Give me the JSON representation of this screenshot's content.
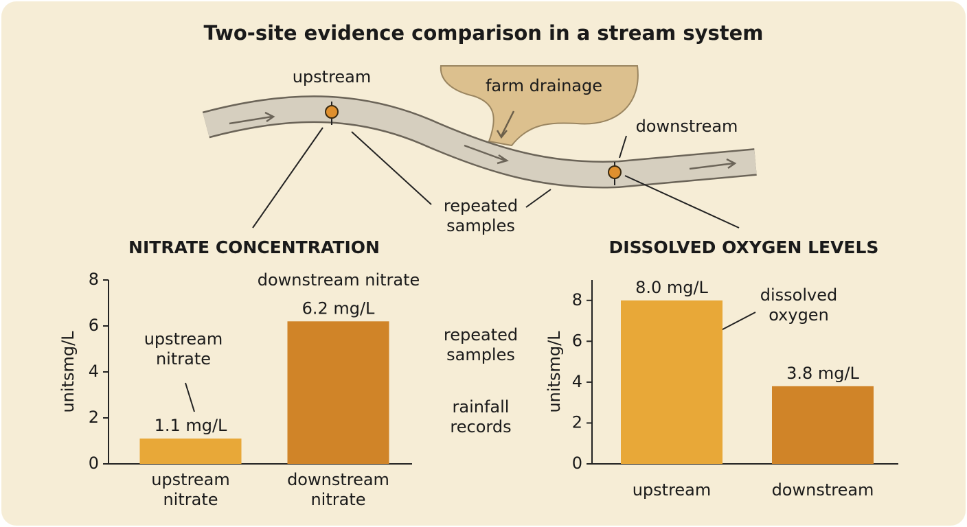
{
  "title": "Two-site evidence comparison in a stream system",
  "diagram": {
    "upstream_site": "upstream",
    "farm_drainage": "farm drainage",
    "downstream_site": "downstream",
    "repeated_samples": "repeated samples"
  },
  "middle_notes": [
    "repeated samples",
    "rainfall records"
  ],
  "chart_data": [
    {
      "type": "bar",
      "title": "NITRATE CONCENTRATION",
      "y_label": "unitsmg/L",
      "categories": [
        "upstream nitrate",
        "downstream nitrate"
      ],
      "values": [
        1.1,
        6.2
      ],
      "value_labels": [
        "1.1 mg/L",
        "6.2 mg/L"
      ],
      "colors": [
        "#e8a838",
        "#d08428"
      ],
      "ylim": [
        0,
        8
      ],
      "yticks": [
        0,
        2,
        4,
        6,
        8
      ],
      "annotations": [
        "upstream nitrate",
        "downstream nitrate"
      ]
    },
    {
      "type": "bar",
      "title": "DISSOLVED OXYGEN LEVELS",
      "y_label": "unitsmg/L",
      "categories": [
        "upstream",
        "downstream"
      ],
      "values": [
        8.0,
        3.8
      ],
      "value_labels": [
        "8.0 mg/L",
        "3.8 mg/L"
      ],
      "colors": [
        "#e8a838",
        "#d08428"
      ],
      "ylim": [
        0,
        9
      ],
      "yticks": [
        0,
        2,
        4,
        6,
        8
      ],
      "annotations": [
        "dissolved oxygen"
      ]
    }
  ]
}
